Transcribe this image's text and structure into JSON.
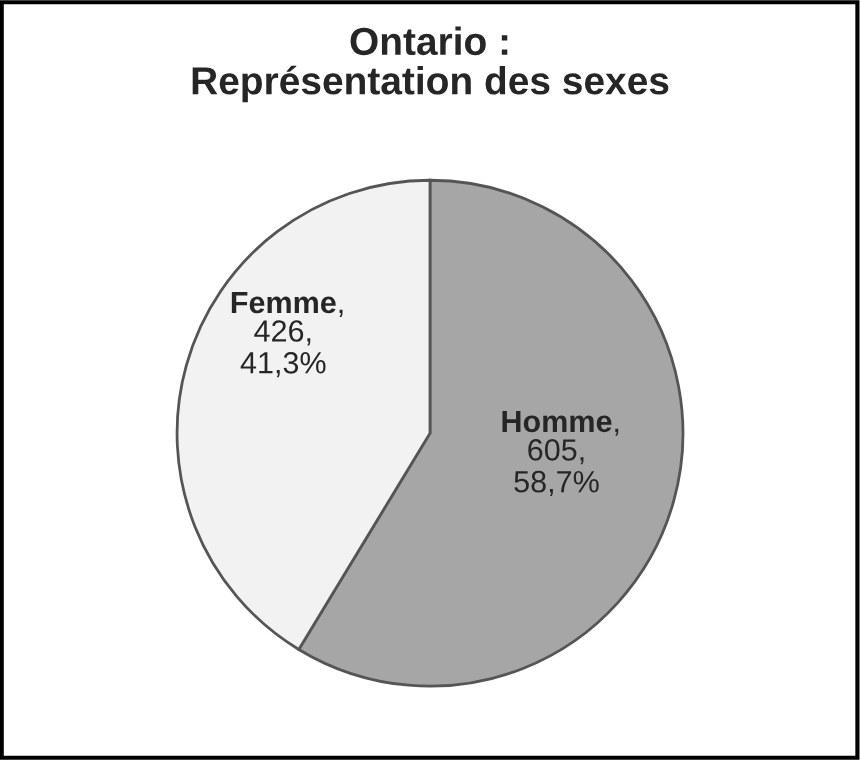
{
  "chart_data": {
    "type": "pie",
    "title": "Ontario :\nReprésentation des sexes",
    "categories": [
      "Homme",
      "Femme"
    ],
    "values": [
      605,
      426
    ],
    "value_labels": [
      ", 605, 58,7%",
      ", 426, 41,3%"
    ],
    "colors": [
      "#a6a6a6",
      "#f2f2f2"
    ]
  }
}
